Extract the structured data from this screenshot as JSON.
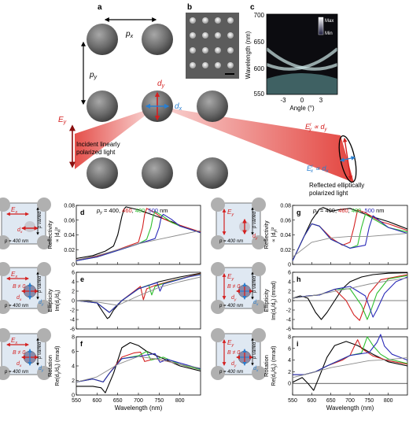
{
  "panel_letters": [
    "a",
    "b",
    "c",
    "d",
    "e",
    "f",
    "g",
    "h",
    "i"
  ],
  "panel_a": {
    "px": "p",
    "px_sub": "x",
    "py": "p",
    "py_sub": "y",
    "dy": "d",
    "dy_sub": "y",
    "dx": "d",
    "dx_sub": "x",
    "ey": "E",
    "ey_sub": "y",
    "incident_label": [
      "Incident linearly",
      "polarized light"
    ],
    "reflected_label": [
      "Reflected elliptically",
      "polarized light"
    ],
    "ey_r": "E",
    "ey_r_sub": "y",
    "ey_r_sup": "r",
    "ey_r_tail": " ∝ d",
    "ey_r_tail_sub": "y",
    "ex_r": "E",
    "ex_r_sub": "x",
    "ex_r_sup": "r",
    "ex_r_tail": " ∝ d",
    "ex_r_tail_sub": "x"
  },
  "panel_c": {
    "ylabel": "Wavelength (nm)",
    "xlabel": "Angle (°)",
    "yticks": [
      "700",
      "650",
      "600",
      "550"
    ],
    "xticks": [
      "-3",
      "0",
      "3"
    ],
    "colorbar_max": "Max",
    "colorbar_min": "Min"
  },
  "insets": {
    "Ex": "E",
    "Ex_sub": "x",
    "Ey": "E",
    "Ey_sub": "y",
    "B": "B ≠ 0",
    "dx": "d",
    "dx_sub": "x",
    "dy": "d",
    "dy_sub": "y",
    "py_varied": "p  varied",
    "py_varied_sub": "y",
    "px_fixed": "p  = 400 nm",
    "px_fixed_sub": "x"
  },
  "legend": {
    "prefix": "p",
    "prefix_sub": "y",
    "eq": " = 400, ",
    "items": [
      "460",
      "480",
      "500"
    ],
    "unit": " nm"
  },
  "colors": {
    "p400": "#000000",
    "p460": "#d42020",
    "p480": "#2fbf2f",
    "p500": "#2a2ab8",
    "ref": "#8c8c8c",
    "red_beam": "#e0302a",
    "arrow_blue": "#2a7fd0",
    "inset_bg": "#dfe8f2"
  },
  "shared_xlabel": "Wavelength (nm)",
  "shared_xticks": [
    "550",
    "600",
    "650",
    "700",
    "750",
    "800"
  ],
  "chart_data": [
    {
      "panel": "d",
      "type": "line",
      "ylabel": [
        "Reflectivity",
        "∝ |d",
        "|²"
      ],
      "ylabel_sub": "x",
      "ylim": [
        0,
        0.08
      ],
      "yticks": [
        "0",
        "0.02",
        "0.04",
        "0.06",
        "0.08"
      ],
      "xlim": [
        550,
        850
      ],
      "series": [
        {
          "name": "400",
          "x": [
            550,
            590,
            620,
            640,
            650,
            660,
            665,
            670,
            700,
            720,
            750,
            780,
            800,
            850
          ],
          "y": [
            0.008,
            0.012,
            0.018,
            0.025,
            0.04,
            0.065,
            0.075,
            0.078,
            0.074,
            0.07,
            0.064,
            0.058,
            0.053,
            0.043
          ]
        },
        {
          "name": "460",
          "x": [
            550,
            600,
            650,
            680,
            700,
            710,
            715,
            720,
            740,
            760,
            780,
            800,
            850
          ],
          "y": [
            0.006,
            0.011,
            0.02,
            0.026,
            0.03,
            0.05,
            0.068,
            0.076,
            0.07,
            0.062,
            0.057,
            0.053,
            0.044
          ]
        },
        {
          "name": "480",
          "x": [
            550,
            600,
            650,
            700,
            720,
            730,
            735,
            740,
            760,
            780,
            800,
            850
          ],
          "y": [
            0.005,
            0.01,
            0.019,
            0.028,
            0.034,
            0.05,
            0.064,
            0.072,
            0.065,
            0.057,
            0.052,
            0.043
          ]
        },
        {
          "name": "500",
          "x": [
            550,
            600,
            650,
            700,
            740,
            750,
            755,
            760,
            780,
            800,
            850
          ],
          "y": [
            0.005,
            0.01,
            0.019,
            0.028,
            0.035,
            0.05,
            0.064,
            0.068,
            0.061,
            0.052,
            0.043
          ]
        },
        {
          "x": [
            550,
            600,
            650,
            700,
            750,
            800,
            850
          ],
          "y": [
            0.006,
            0.012,
            0.02,
            0.028,
            0.034,
            0.04,
            0.046
          ]
        }
      ]
    },
    {
      "panel": "e",
      "type": "line",
      "ylabel": [
        "Ellipticity",
        "Im(d",
        "/d",
        ")"
      ],
      "ylabel_sub": [
        "y",
        "x"
      ],
      "ylim": [
        -6,
        6
      ],
      "yticks": [
        "-6",
        "-4",
        "-2",
        "0",
        "2",
        "4",
        "6"
      ],
      "xlim": [
        550,
        850
      ],
      "series": [
        {
          "name": "400",
          "x": [
            550,
            580,
            600,
            615,
            625,
            630,
            640,
            660,
            700,
            750,
            800,
            850
          ],
          "y": [
            0,
            0,
            -0.5,
            -2.5,
            -3.8,
            -3.5,
            -2,
            0,
            2.5,
            4,
            5,
            5.8
          ]
        },
        {
          "name": "460",
          "x": [
            550,
            600,
            630,
            660,
            690,
            705,
            712,
            720,
            740,
            780,
            850
          ],
          "y": [
            0,
            -0.5,
            -2.5,
            0,
            2,
            3,
            0.2,
            2.5,
            3.2,
            4.2,
            5.7
          ]
        },
        {
          "name": "480",
          "x": [
            550,
            600,
            630,
            660,
            700,
            725,
            732,
            740,
            760,
            800,
            850
          ],
          "y": [
            0,
            -0.5,
            -2.5,
            0,
            2.5,
            3.3,
            1.2,
            3,
            3.6,
            4.6,
            5.6
          ]
        },
        {
          "name": "500",
          "x": [
            550,
            600,
            630,
            660,
            700,
            745,
            752,
            760,
            780,
            820,
            850
          ],
          "y": [
            0,
            -0.5,
            -2.5,
            0,
            2.5,
            3.8,
            2,
            3.5,
            4,
            5,
            5.5
          ]
        },
        {
          "x": [
            550,
            600,
            650,
            700,
            750,
            800,
            850
          ],
          "y": [
            0,
            -0.3,
            -1,
            1,
            2.8,
            4,
            5
          ]
        }
      ]
    },
    {
      "panel": "f",
      "type": "line",
      "ylabel": [
        "Rotation",
        "Re(d",
        "/d",
        ") (mrad)"
      ],
      "ylabel_sub": [
        "y",
        "x"
      ],
      "ylim": [
        0,
        8
      ],
      "yticks": [
        "0",
        "2",
        "4",
        "6",
        "8"
      ],
      "xlim": [
        550,
        850
      ],
      "series": [
        {
          "name": "400",
          "x": [
            550,
            590,
            610,
            620,
            640,
            660,
            680,
            700,
            720,
            760,
            800,
            850
          ],
          "y": [
            1.2,
            1.2,
            1,
            0.3,
            3,
            6.5,
            7.2,
            6.8,
            6,
            5,
            4,
            3.3
          ]
        },
        {
          "name": "460",
          "x": [
            550,
            590,
            615,
            630,
            660,
            690,
            705,
            715,
            740,
            780,
            820,
            850
          ],
          "y": [
            1.8,
            2.2,
            1.8,
            3,
            5.2,
            5.8,
            5.9,
            4.6,
            5,
            4.5,
            3.9,
            3.5
          ]
        },
        {
          "name": "480",
          "x": [
            550,
            590,
            615,
            630,
            660,
            700,
            720,
            730,
            760,
            800,
            850
          ],
          "y": [
            1.8,
            2.2,
            1.8,
            3,
            5,
            5.4,
            6,
            4.8,
            5.2,
            4.2,
            3.5
          ]
        },
        {
          "name": "500",
          "x": [
            550,
            590,
            615,
            630,
            660,
            700,
            740,
            752,
            770,
            800,
            850
          ],
          "y": [
            1.8,
            2.2,
            1.8,
            3,
            5,
            5.3,
            5.7,
            4.5,
            4.9,
            4.4,
            3.6
          ]
        },
        {
          "x": [
            550,
            600,
            650,
            700,
            750,
            800,
            850
          ],
          "y": [
            1.8,
            2.5,
            4.2,
            5.3,
            4.9,
            4.2,
            3.7
          ]
        }
      ]
    },
    {
      "panel": "g",
      "type": "line",
      "ylabel": [
        "Reflectivity",
        "∝ |d",
        "|²"
      ],
      "ylabel_sub": "y",
      "ylim": [
        0,
        0.08
      ],
      "yticks": [
        "0",
        "0.02",
        "0.04",
        "0.06",
        "0.08"
      ],
      "xlim": [
        550,
        850
      ],
      "series": [
        {
          "name": "400",
          "x": [
            550,
            580,
            600,
            620,
            630,
            640,
            650,
            670,
            700,
            720,
            750,
            800,
            850
          ],
          "y": [
            0.005,
            0.038,
            0.06,
            0.075,
            0.077,
            0.075,
            0.072,
            0.074,
            0.076,
            0.072,
            0.066,
            0.058,
            0.048
          ]
        },
        {
          "name": "460",
          "x": [
            550,
            580,
            600,
            620,
            650,
            680,
            700,
            710,
            720,
            740,
            780,
            800,
            850
          ],
          "y": [
            0.005,
            0.038,
            0.055,
            0.052,
            0.036,
            0.026,
            0.03,
            0.05,
            0.074,
            0.07,
            0.058,
            0.055,
            0.046
          ]
        },
        {
          "name": "480",
          "x": [
            550,
            580,
            600,
            620,
            650,
            700,
            720,
            730,
            740,
            760,
            800,
            850
          ],
          "y": [
            0.005,
            0.038,
            0.055,
            0.052,
            0.034,
            0.022,
            0.026,
            0.05,
            0.068,
            0.062,
            0.05,
            0.044
          ]
        },
        {
          "name": "500",
          "x": [
            550,
            580,
            600,
            620,
            650,
            700,
            740,
            750,
            760,
            780,
            800,
            850
          ],
          "y": [
            0.005,
            0.038,
            0.055,
            0.052,
            0.034,
            0.022,
            0.026,
            0.05,
            0.066,
            0.058,
            0.05,
            0.042
          ]
        },
        {
          "x": [
            550,
            600,
            650,
            700,
            750,
            800,
            850
          ],
          "y": [
            0.01,
            0.03,
            0.036,
            0.038,
            0.038,
            0.04,
            0.042
          ]
        }
      ]
    },
    {
      "panel": "h",
      "type": "line",
      "ylabel": [
        "Ellipticity",
        "Im(d",
        "/d",
        ") (mrad)"
      ],
      "ylabel_sub": [
        "x",
        "y"
      ],
      "ylim": [
        -6,
        6
      ],
      "yticks": [
        "-6",
        "-4",
        "-2",
        "0",
        "2",
        "4",
        "6"
      ],
      "xlim": [
        550,
        850
      ],
      "series": [
        {
          "name": "400",
          "x": [
            550,
            570,
            590,
            610,
            625,
            640,
            660,
            680,
            700,
            730,
            760,
            800,
            850
          ],
          "y": [
            0.5,
            1,
            0.5,
            -2.5,
            -4,
            -2.5,
            0,
            2.5,
            4,
            5,
            5.5,
            5.8,
            5.9
          ]
        },
        {
          "name": "460",
          "x": [
            550,
            590,
            620,
            660,
            690,
            710,
            725,
            735,
            750,
            780,
            850
          ],
          "y": [
            0.5,
            1,
            1.2,
            2.4,
            0,
            -3,
            -4.2,
            -2,
            1.5,
            4.4,
            5.5
          ]
        },
        {
          "name": "480",
          "x": [
            550,
            590,
            620,
            660,
            700,
            730,
            745,
            755,
            770,
            800,
            850
          ],
          "y": [
            0.5,
            1,
            1.2,
            2.4,
            2.5,
            -1,
            -4,
            -2,
            1.5,
            4.6,
            5.3
          ]
        },
        {
          "name": "500",
          "x": [
            550,
            590,
            620,
            660,
            700,
            740,
            760,
            770,
            790,
            820,
            850
          ],
          "y": [
            0.5,
            1,
            1.2,
            2.4,
            3,
            1,
            -3.5,
            -2,
            1.5,
            4,
            5
          ]
        },
        {
          "x": [
            550,
            600,
            650,
            700,
            750,
            800,
            850
          ],
          "y": [
            0.5,
            1,
            1.8,
            2.6,
            3.5,
            4.2,
            4.8
          ]
        }
      ]
    },
    {
      "panel": "i",
      "type": "line",
      "ylabel": [
        "Rotation",
        "Re(d",
        "/d",
        ") (mrad)"
      ],
      "ylabel_sub": [
        "x",
        "y"
      ],
      "ylim": [
        -2,
        8
      ],
      "yticks": [
        "0",
        "2",
        "4",
        "6",
        "8"
      ],
      "xlim": [
        550,
        850
      ],
      "series": [
        {
          "name": "400",
          "x": [
            550,
            575,
            590,
            605,
            620,
            640,
            660,
            690,
            720,
            760,
            800,
            850
          ],
          "y": [
            0.2,
            1,
            0,
            -1.2,
            1.2,
            4.5,
            6.5,
            7.2,
            6.5,
            5,
            3.7,
            3
          ]
        },
        {
          "name": "460",
          "x": [
            550,
            580,
            610,
            640,
            680,
            700,
            710,
            720,
            730,
            760,
            800,
            850
          ],
          "y": [
            1.5,
            1.5,
            2,
            3,
            4,
            4.8,
            6.2,
            7.5,
            6,
            4.7,
            3.9,
            3.3
          ]
        },
        {
          "name": "480",
          "x": [
            550,
            580,
            610,
            640,
            700,
            730,
            745,
            760,
            780,
            800,
            850
          ],
          "y": [
            1.5,
            1.5,
            2,
            3,
            4.8,
            5.2,
            8,
            6.5,
            5,
            4.2,
            3.4
          ]
        },
        {
          "name": "500",
          "x": [
            550,
            580,
            610,
            640,
            700,
            750,
            770,
            780,
            790,
            810,
            850
          ],
          "y": [
            1.5,
            1.5,
            2,
            3,
            4.8,
            5.3,
            7,
            8.4,
            6.4,
            5,
            4
          ]
        },
        {
          "x": [
            550,
            600,
            650,
            700,
            750,
            800,
            850
          ],
          "y": [
            1,
            1.8,
            2.7,
            3.3,
            3.9,
            4.1,
            4.4
          ]
        }
      ]
    }
  ]
}
